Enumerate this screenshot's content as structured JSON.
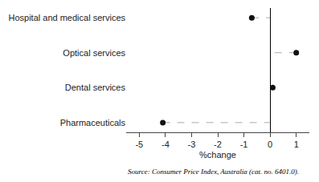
{
  "chart_data": {
    "type": "dot",
    "orientation": "horizontal",
    "categories": [
      "Hospital and medical services",
      "Optical services",
      "Dental services",
      "Pharmaceuticals"
    ],
    "values": [
      -0.7,
      1.0,
      0.1,
      -4.1
    ],
    "color": "#111111",
    "line_style": "dashed",
    "xlabel": "%change",
    "xlim": [
      -5.5,
      1.5
    ],
    "xticks": [
      -5,
      -4,
      -3,
      -2,
      -1,
      0,
      1
    ],
    "grid": false,
    "annotations": [
      "Source: Consumer Price Index, Australia (cat. no. 6401.0)."
    ]
  }
}
